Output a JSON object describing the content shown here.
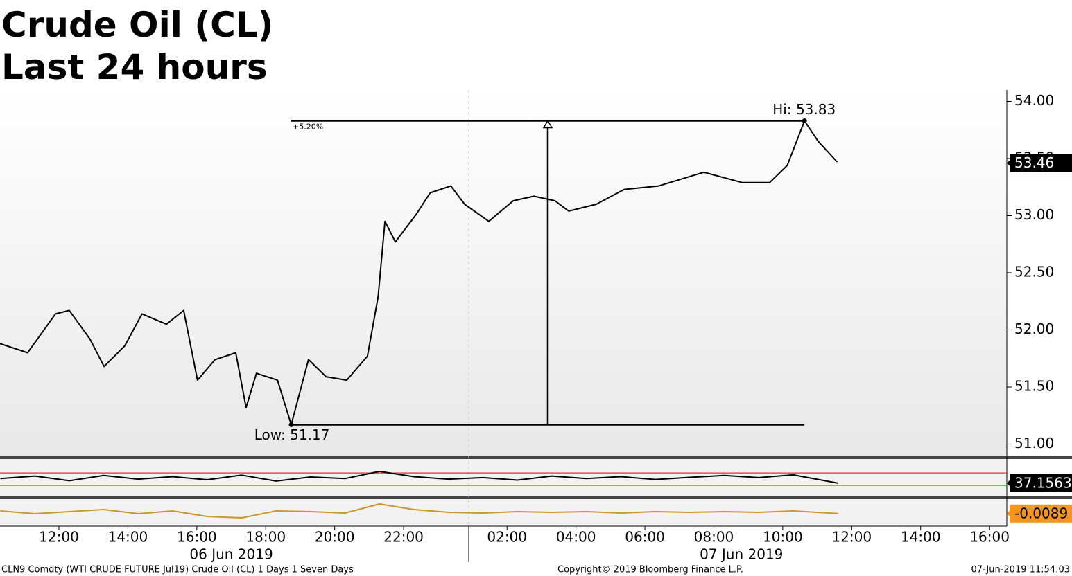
{
  "chart_data": [
    {
      "type": "line",
      "title": "Crude Oil (CL)",
      "subtitle": "Last 24 hours",
      "x": [
        10.29,
        11.09,
        11.9,
        12.3,
        12.9,
        13.31,
        13.91,
        14.41,
        15.12,
        15.62,
        16.02,
        16.53,
        17.13,
        17.43,
        17.73,
        18.34,
        18.74,
        19.24,
        19.75,
        20.35,
        20.95,
        21.26,
        21.46,
        21.76,
        22.36,
        22.77,
        23.37,
        23.77,
        24.47,
        25.18,
        25.78,
        26.39,
        26.79,
        27.59,
        28.4,
        29.4,
        30.71,
        31.82,
        32.62,
        33.13,
        33.63,
        34.03,
        34.58
      ],
      "series": [
        {
          "color": "#000000",
          "values": [
            51.88,
            51.8,
            52.14,
            52.17,
            51.92,
            51.68,
            51.86,
            52.14,
            52.05,
            52.17,
            51.56,
            51.74,
            51.8,
            51.32,
            51.62,
            51.56,
            51.17,
            51.74,
            51.59,
            51.56,
            51.77,
            52.29,
            52.95,
            52.77,
            53.01,
            53.2,
            53.26,
            53.1,
            52.95,
            53.13,
            53.17,
            53.13,
            53.04,
            53.1,
            53.23,
            53.26,
            53.38,
            53.29,
            53.29,
            53.44,
            53.83,
            53.65,
            53.47
          ]
        }
      ],
      "xlim": [
        10.29,
        39.5
      ],
      "xticks": [
        {
          "value": 12,
          "label": "12:00"
        },
        {
          "value": 14,
          "label": "14:00"
        },
        {
          "value": 16,
          "label": "16:00"
        },
        {
          "value": 18,
          "label": "18:00"
        },
        {
          "value": 20,
          "label": "20:00"
        },
        {
          "value": 22,
          "label": "22:00"
        },
        {
          "value": 25,
          "label": "02:00"
        },
        {
          "value": 27,
          "label": "04:00"
        },
        {
          "value": 29,
          "label": "06:00"
        },
        {
          "value": 31,
          "label": "08:00"
        },
        {
          "value": 33,
          "label": "10:00"
        },
        {
          "value": 35,
          "label": "12:00"
        },
        {
          "value": 37,
          "label": "14:00"
        },
        {
          "value": 39,
          "label": "16:00"
        }
      ],
      "dates": [
        {
          "value": 17,
          "label": "06 Jun 2019"
        },
        {
          "value": 31.8,
          "label": "07 Jun 2019"
        }
      ],
      "ylim": [
        50.9,
        54.1
      ],
      "yticks": [
        {
          "value": 51,
          "label": "51.00"
        },
        {
          "value": 51.5,
          "label": "51.50"
        },
        {
          "value": 52,
          "label": "52.00"
        },
        {
          "value": 52.5,
          "label": "52.50"
        },
        {
          "value": 53,
          "label": "53.00"
        },
        {
          "value": 53.5,
          "label": "53.50"
        },
        {
          "value": 54,
          "label": "54.00"
        }
      ],
      "high": {
        "value": 53.83,
        "label": "Hi: 53.83",
        "x": 33.63
      },
      "low": {
        "value": 51.17,
        "label": "Low: 51.17",
        "x": 18.74
      },
      "change": "+5.20%",
      "last": {
        "value": 53.46,
        "label": "53.46",
        "color": "#000000"
      }
    },
    {
      "type": "line",
      "x": [
        10.3,
        11.3,
        12.3,
        13.3,
        14.3,
        15.3,
        16.3,
        17.3,
        18.3,
        19.3,
        20.3,
        21.3,
        22.3,
        23.3,
        24.3,
        25.3,
        26.3,
        27.3,
        28.3,
        29.3,
        30.3,
        31.3,
        32.3,
        33.3,
        34.6
      ],
      "series": [
        {
          "color": "#000000",
          "values": [
            52,
            60,
            45,
            62,
            50,
            58,
            48,
            63,
            44,
            57,
            52,
            75,
            58,
            50,
            55,
            47,
            60,
            52,
            58,
            49,
            56,
            62,
            55,
            64,
            37.1563
          ]
        }
      ],
      "ylim": [
        -3,
        117
      ],
      "reference_lines": [
        {
          "value": 70,
          "color": "#e03030"
        },
        {
          "value": 30,
          "color": "#20c020"
        }
      ],
      "last": {
        "value": 37.1563,
        "label": "37.1563",
        "color": "#000000"
      }
    },
    {
      "type": "line",
      "x": [
        10.3,
        11.3,
        12.3,
        13.3,
        14.3,
        15.3,
        16.3,
        17.3,
        18.3,
        19.3,
        20.3,
        21.3,
        22.3,
        23.3,
        24.3,
        25.3,
        26.3,
        27.3,
        28.3,
        29.3,
        30.3,
        31.3,
        32.3,
        33.3,
        34.6
      ],
      "series": [
        {
          "color": "#c8962a",
          "values": [
            0.01,
            -0.01,
            0.005,
            0.02,
            -0.01,
            0.01,
            -0.03,
            -0.04,
            0.01,
            0.005,
            -0.005,
            0.06,
            0.02,
            0.0,
            -0.005,
            0.005,
            0.0,
            0.005,
            -0.005,
            0.005,
            0.0,
            0.005,
            0.0,
            0.01,
            -0.0089
          ]
        }
      ],
      "ylim": [
        -0.1,
        0.1
      ],
      "last": {
        "value": -0.0089,
        "label": "-0.0089",
        "color": "#f7941d"
      }
    }
  ],
  "footer": {
    "left": "CLN9 Comdty (WTI CRUDE FUTURE  Jul19) Crude Oil (CL) 1 Days 1 Seven Days",
    "center": "Copyright© 2019 Bloomberg Finance L.P.",
    "right": "07-Jun-2019 11:54:03"
  }
}
